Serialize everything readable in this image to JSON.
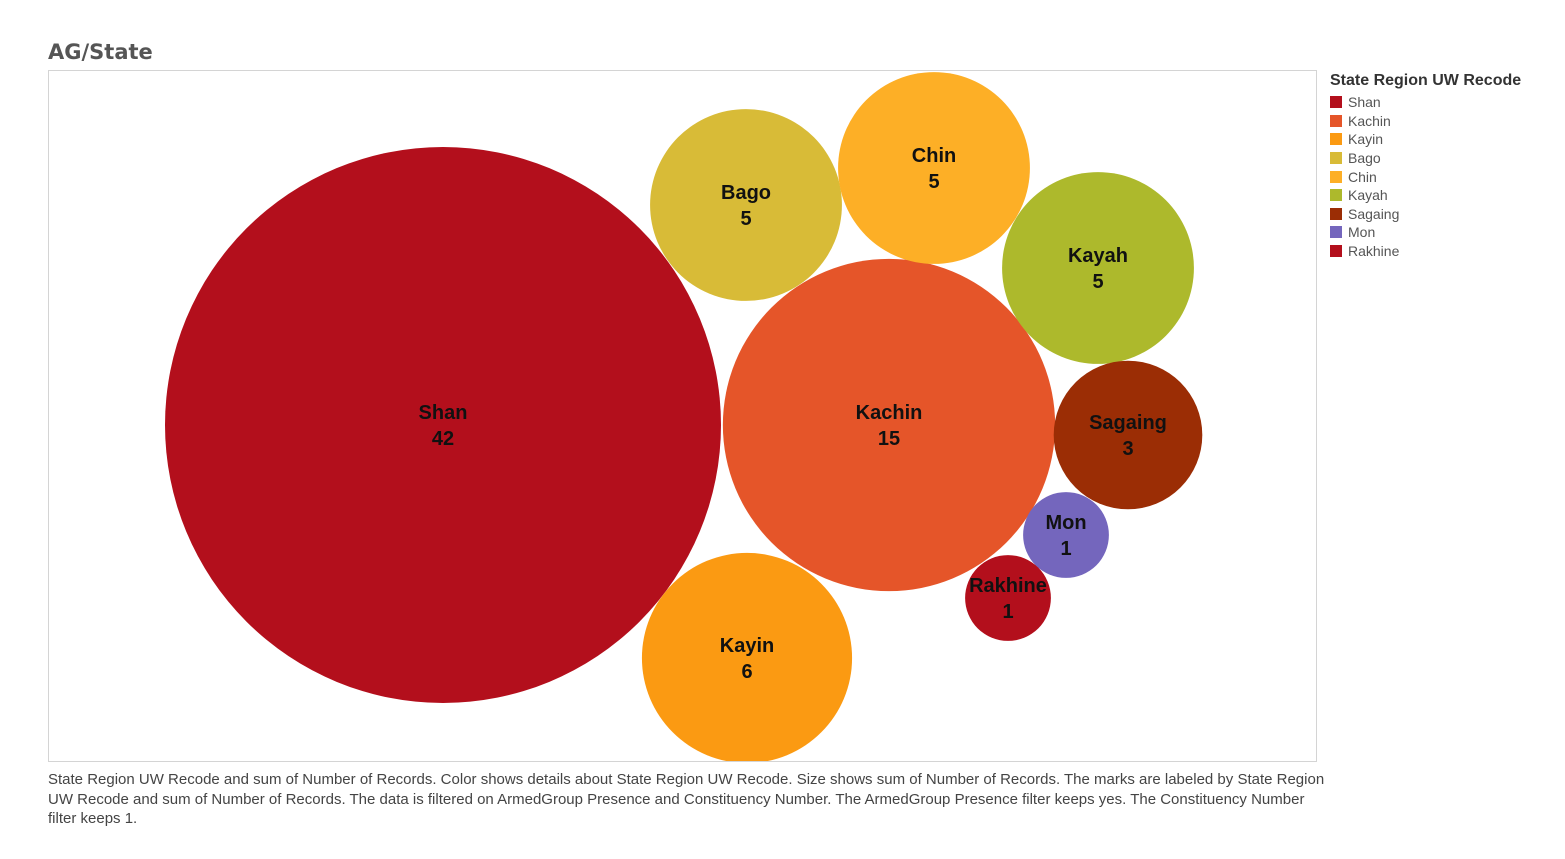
{
  "title": "AG/State",
  "legend": {
    "title": "State Region UW Recode",
    "items": [
      {
        "label": "Shan",
        "color": "#b30f1c"
      },
      {
        "label": "Kachin",
        "color": "#e55529"
      },
      {
        "label": "Kayin",
        "color": "#fb9a12"
      },
      {
        "label": "Bago",
        "color": "#d8bb37"
      },
      {
        "label": "Chin",
        "color": "#fdaf26"
      },
      {
        "label": "Kayah",
        "color": "#adb92c"
      },
      {
        "label": "Sagaing",
        "color": "#9b2d05"
      },
      {
        "label": "Mon",
        "color": "#7466bd"
      },
      {
        "label": "Rakhine",
        "color": "#b30f1c"
      }
    ]
  },
  "caption": "State Region UW Recode and sum of Number of Records.  Color shows details about State Region UW Recode.  Size shows sum of Number of Records.  The marks are labeled by State Region UW Recode and sum of Number of Records. The data is filtered on ArmedGroup Presence and Constituency Number. The ArmedGroup Presence filter keeps yes. The Constituency Number filter keeps 1.",
  "chart_data": {
    "type": "bubble",
    "size_measure": "sum of Number of Records",
    "color_dimension": "State Region UW Recode",
    "points": [
      {
        "label": "Shan",
        "value": 42,
        "color": "#b30f1c"
      },
      {
        "label": "Kachin",
        "value": 15,
        "color": "#e55529"
      },
      {
        "label": "Kayin",
        "value": 6,
        "color": "#fb9a12"
      },
      {
        "label": "Bago",
        "value": 5,
        "color": "#d8bb37"
      },
      {
        "label": "Chin",
        "value": 5,
        "color": "#fdaf26"
      },
      {
        "label": "Kayah",
        "value": 5,
        "color": "#adb92c"
      },
      {
        "label": "Sagaing",
        "value": 3,
        "color": "#9b2d05"
      },
      {
        "label": "Mon",
        "value": 1,
        "color": "#7466bd"
      },
      {
        "label": "Rakhine",
        "value": 1,
        "color": "#b30f1c"
      }
    ]
  }
}
